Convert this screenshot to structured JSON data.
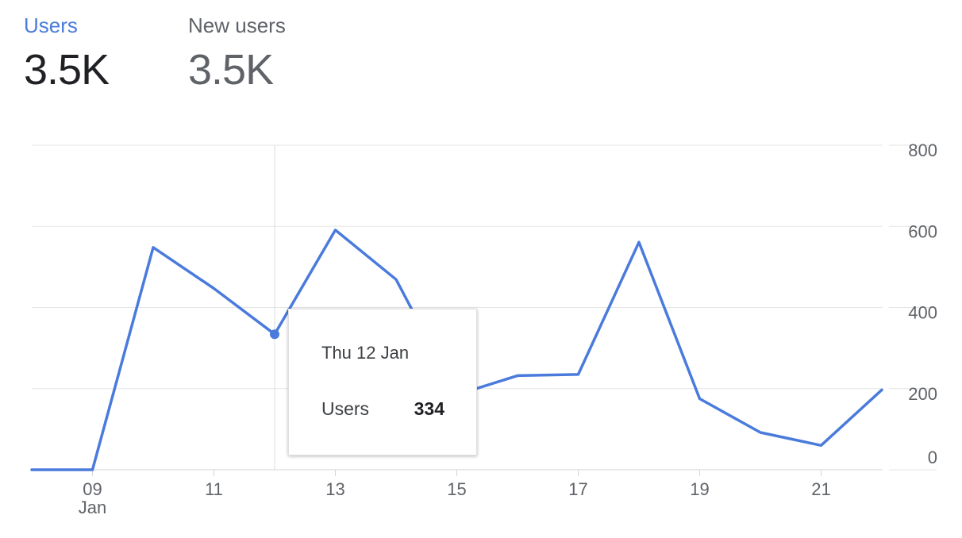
{
  "metrics": {
    "users": {
      "label": "Users",
      "value": "3.5K",
      "color": "#4a7bdc"
    },
    "new_users": {
      "label": "New users",
      "value": "3.5K",
      "color": "#5f6368"
    }
  },
  "tooltip": {
    "date": "Thu 12 Jan",
    "metric_label": "Users",
    "metric_value": "334"
  },
  "chart_data": {
    "type": "line",
    "x": [
      "08",
      "09",
      "10",
      "11",
      "12",
      "13",
      "14",
      "15",
      "16",
      "17",
      "18",
      "19",
      "20",
      "21",
      "22"
    ],
    "x_tick_labels": [
      "09",
      "11",
      "13",
      "15",
      "17",
      "19",
      "21"
    ],
    "x_sub_label": "Jan",
    "series": [
      {
        "name": "Users",
        "color": "#4a7bdc",
        "values": [
          0,
          0,
          548,
          447,
          334,
          591,
          469,
          185,
          232,
          235,
          561,
          175,
          92,
          60,
          197
        ]
      }
    ],
    "y_ticks": [
      0,
      200,
      400,
      600,
      800
    ],
    "ylim": [
      0,
      800
    ],
    "y_axis_side": "right",
    "grid": true,
    "highlight_date": "12"
  }
}
